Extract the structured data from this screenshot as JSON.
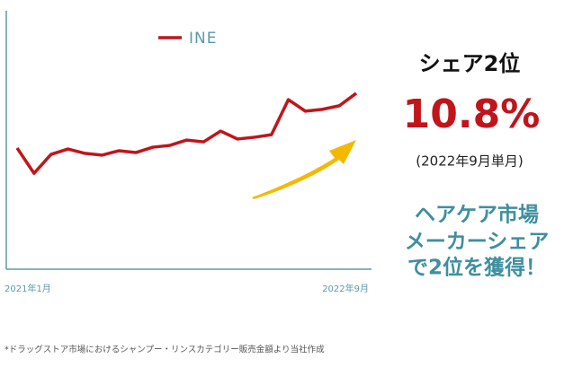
{
  "chart_data": {
    "type": "line",
    "categories": [
      "2021年1月",
      null,
      null,
      null,
      null,
      null,
      null,
      null,
      null,
      null,
      null,
      null,
      null,
      null,
      null,
      null,
      null,
      null,
      null,
      null,
      "2022年9月"
    ],
    "series": [
      {
        "name": "INE",
        "color": "#c0151b",
        "values": [
          47.4,
          37.5,
          44.9,
          47.0,
          45.3,
          44.6,
          46.3,
          45.6,
          47.7,
          48.4,
          50.5,
          49.8,
          54.0,
          50.9,
          51.6,
          52.6,
          66.3,
          61.8,
          62.5,
          63.9,
          68.8
        ]
      }
    ],
    "ylim": [
      0,
      100
    ]
  },
  "side_panel": {
    "heading": "シェア2位",
    "value": "10.8%",
    "period": "(2022年9月単月)",
    "message": [
      "ヘアケア市場",
      "メーカーシェア",
      "で2位を獲得！"
    ]
  },
  "footnote": "*ドラッグストア市場におけるシャンプー・リンスカテゴリー販売金額より当社作成"
}
